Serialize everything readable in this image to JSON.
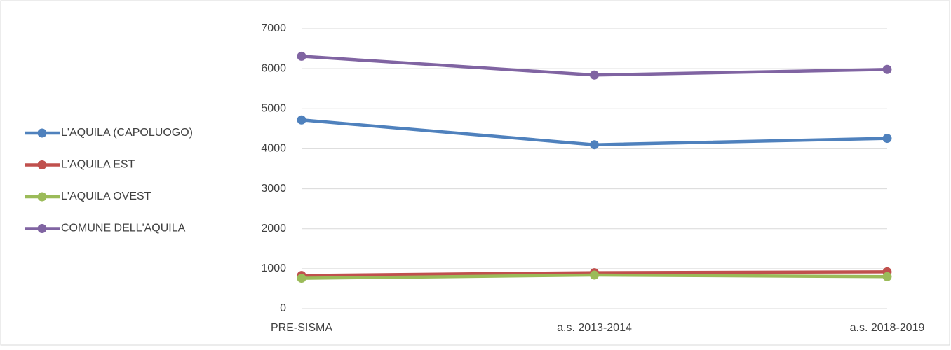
{
  "chart_data": {
    "type": "line",
    "categories": [
      "PRE-SISMA",
      "a.s. 2013-2014",
      "a.s. 2018-2019"
    ],
    "series": [
      {
        "name": "L'AQUILA (CAPOLUOGO)",
        "color": "#4f81bd",
        "values": [
          4720,
          4100,
          4260
        ]
      },
      {
        "name": "L'AQUILA EST",
        "color": "#c0504d",
        "values": [
          830,
          900,
          920
        ]
      },
      {
        "name": "L'AQUILA OVEST",
        "color": "#9bbb59",
        "values": [
          760,
          840,
          800
        ]
      },
      {
        "name": "COMUNE DELL'AQUILA",
        "color": "#8064a2",
        "values": [
          6310,
          5840,
          5980
        ]
      }
    ],
    "ylim": [
      0,
      7000
    ],
    "yticks": [
      0,
      1000,
      2000,
      3000,
      4000,
      5000,
      6000,
      7000
    ],
    "grid": true,
    "legend": "left"
  }
}
